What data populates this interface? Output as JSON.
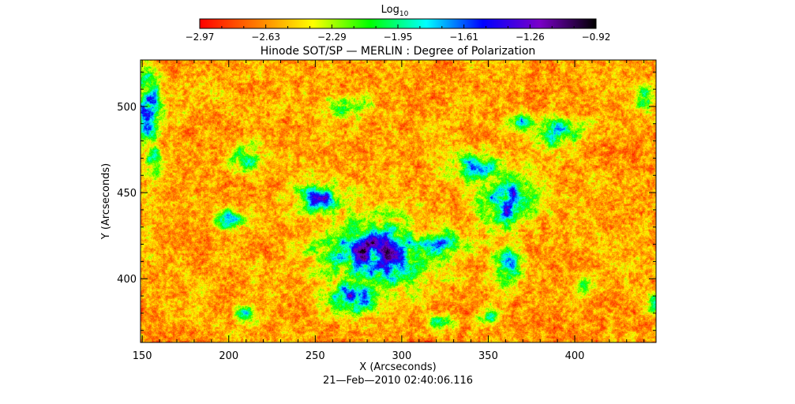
{
  "chart_data": {
    "type": "heatmap",
    "title": "Hinode SOT/SP — MERLIN : Degree of Polarization",
    "xlabel": "X (Arcseconds)",
    "ylabel": "Y (Arcseconds)",
    "xlim": [
      149,
      447
    ],
    "ylim": [
      363,
      527
    ],
    "xticks": [
      150,
      200,
      250,
      300,
      350,
      400
    ],
    "yticks": [
      400,
      450,
      500
    ],
    "timestamp": "21—Feb—2010 02:40:06.116",
    "colorbar": {
      "label": "Log",
      "label_subscript": "10",
      "range": [
        -2.97,
        -0.92
      ],
      "tick_labels": [
        "−2.97",
        "−2.63",
        "−2.29",
        "−1.95",
        "−1.61",
        "−1.26",
        "−0.92"
      ],
      "colors": [
        "#ff0000",
        "#ff7a00",
        "#ffff00",
        "#00ff00",
        "#00ffff",
        "#0000ff",
        "#7a00c8",
        "#000000"
      ]
    },
    "high_polarization_regions": [
      {
        "x": 285,
        "y": 415,
        "rx": 28,
        "ry": 17,
        "level": 0.9
      },
      {
        "x": 270,
        "y": 390,
        "rx": 14,
        "ry": 10,
        "level": 0.8
      },
      {
        "x": 360,
        "y": 445,
        "rx": 14,
        "ry": 14,
        "level": 0.85
      },
      {
        "x": 345,
        "y": 465,
        "rx": 16,
        "ry": 8,
        "level": 0.6
      },
      {
        "x": 390,
        "y": 485,
        "rx": 12,
        "ry": 8,
        "level": 0.55
      },
      {
        "x": 360,
        "y": 408,
        "rx": 8,
        "ry": 10,
        "level": 0.75
      },
      {
        "x": 320,
        "y": 420,
        "rx": 16,
        "ry": 9,
        "level": 0.6
      },
      {
        "x": 253,
        "y": 447,
        "rx": 14,
        "ry": 8,
        "level": 0.7
      },
      {
        "x": 200,
        "y": 435,
        "rx": 8,
        "ry": 5,
        "level": 0.7
      },
      {
        "x": 153,
        "y": 500,
        "rx": 6,
        "ry": 20,
        "level": 0.85
      },
      {
        "x": 157,
        "y": 470,
        "rx": 5,
        "ry": 8,
        "level": 0.6
      },
      {
        "x": 210,
        "y": 470,
        "rx": 8,
        "ry": 7,
        "level": 0.55
      },
      {
        "x": 270,
        "y": 500,
        "rx": 10,
        "ry": 5,
        "level": 0.5
      },
      {
        "x": 370,
        "y": 490,
        "rx": 8,
        "ry": 5,
        "level": 0.55
      },
      {
        "x": 405,
        "y": 395,
        "rx": 4,
        "ry": 4,
        "level": 0.6
      },
      {
        "x": 210,
        "y": 380,
        "rx": 7,
        "ry": 5,
        "level": 0.55
      },
      {
        "x": 350,
        "y": 378,
        "rx": 6,
        "ry": 5,
        "level": 0.5
      },
      {
        "x": 445,
        "y": 385,
        "rx": 3,
        "ry": 6,
        "level": 0.55
      },
      {
        "x": 323,
        "y": 375,
        "rx": 8,
        "ry": 4,
        "level": 0.45
      },
      {
        "x": 440,
        "y": 505,
        "rx": 4,
        "ry": 6,
        "level": 0.5
      }
    ]
  }
}
